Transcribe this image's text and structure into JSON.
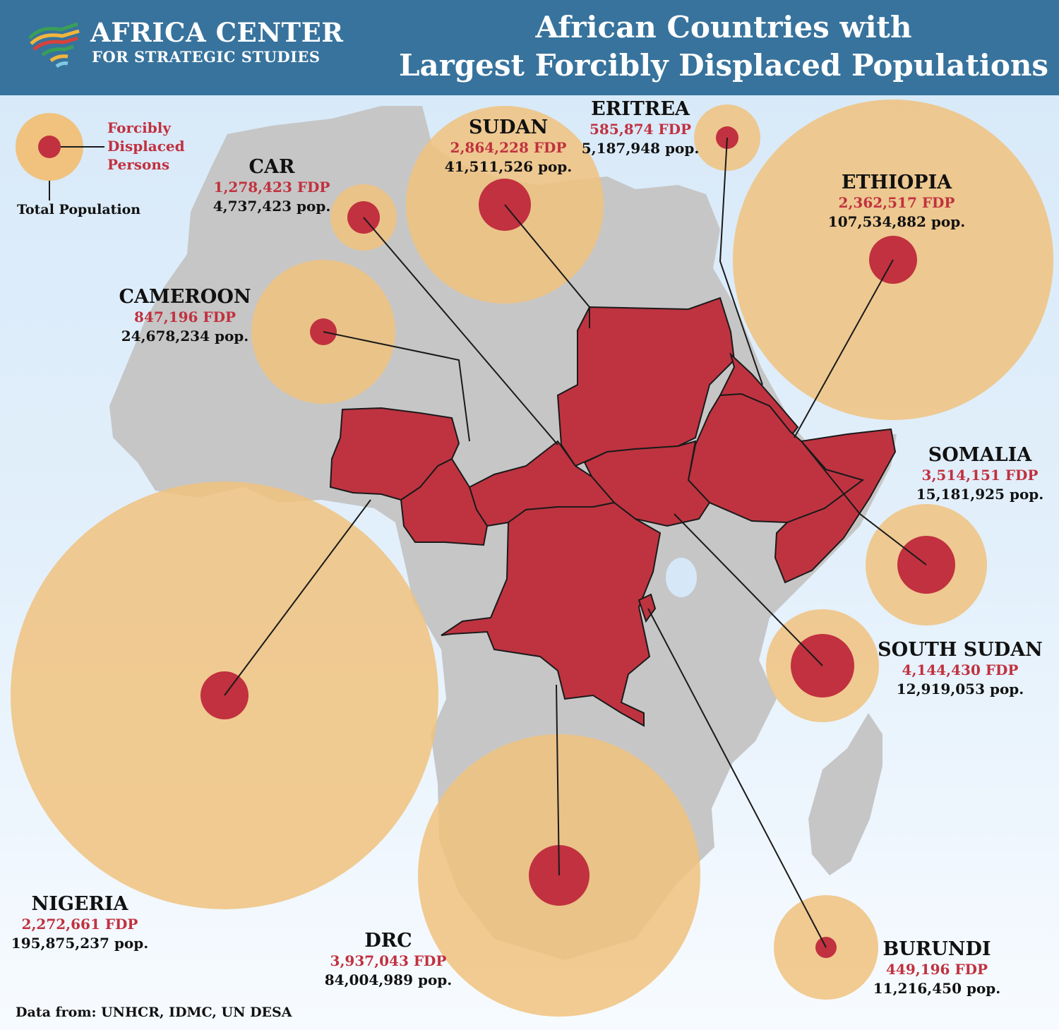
{
  "header": {
    "org_line1": "AFRICA CENTER",
    "org_line2": "FOR STRATEGIC STUDIES",
    "title_line1": "African Countries with",
    "title_line2": "Largest Forcibly Displaced Populations"
  },
  "legend": {
    "fdp_label_1": "Forcibly",
    "fdp_label_2": "Displaced",
    "fdp_label_3": "Persons",
    "pop_label": "Total Population"
  },
  "countries": {
    "car": {
      "name": "CAR",
      "fdp": "1,278,423 FDP",
      "pop": "4,737,423 pop."
    },
    "sudan": {
      "name": "SUDAN",
      "fdp": "2,864,228 FDP",
      "pop": "41,511,526 pop."
    },
    "eritrea": {
      "name": "ERITREA",
      "fdp": "585,874 FDP",
      "pop": "5,187,948 pop."
    },
    "ethiopia": {
      "name": "ETHIOPIA",
      "fdp": "2,362,517 FDP",
      "pop": "107,534,882 pop."
    },
    "cameroon": {
      "name": "CAMEROON",
      "fdp": "847,196 FDP",
      "pop": "24,678,234 pop."
    },
    "somalia": {
      "name": "SOMALIA",
      "fdp": "3,514,151 FDP",
      "pop": "15,181,925 pop."
    },
    "south_sudan": {
      "name": "SOUTH SUDAN",
      "fdp": "4,144,430 FDP",
      "pop": "12,919,053 pop."
    },
    "nigeria": {
      "name": "NIGERIA",
      "fdp": "2,272,661 FDP",
      "pop": "195,875,237 pop."
    },
    "drc": {
      "name": "DRC",
      "fdp": "3,937,043 FDP",
      "pop": "84,004,989 pop."
    },
    "burundi": {
      "name": "BURUNDI",
      "fdp": "449,196 FDP",
      "pop": "11,216,450 pop."
    }
  },
  "source": "Data from: UNHCR, IDMC, UN DESA",
  "colors": {
    "header_bg": "#37739d",
    "population_circle": "#f0c27e",
    "fdp_circle": "#c1313f",
    "highlighted_country": "#bf3340",
    "land": "#c6c6c6",
    "water": "#d6e8f8"
  }
}
